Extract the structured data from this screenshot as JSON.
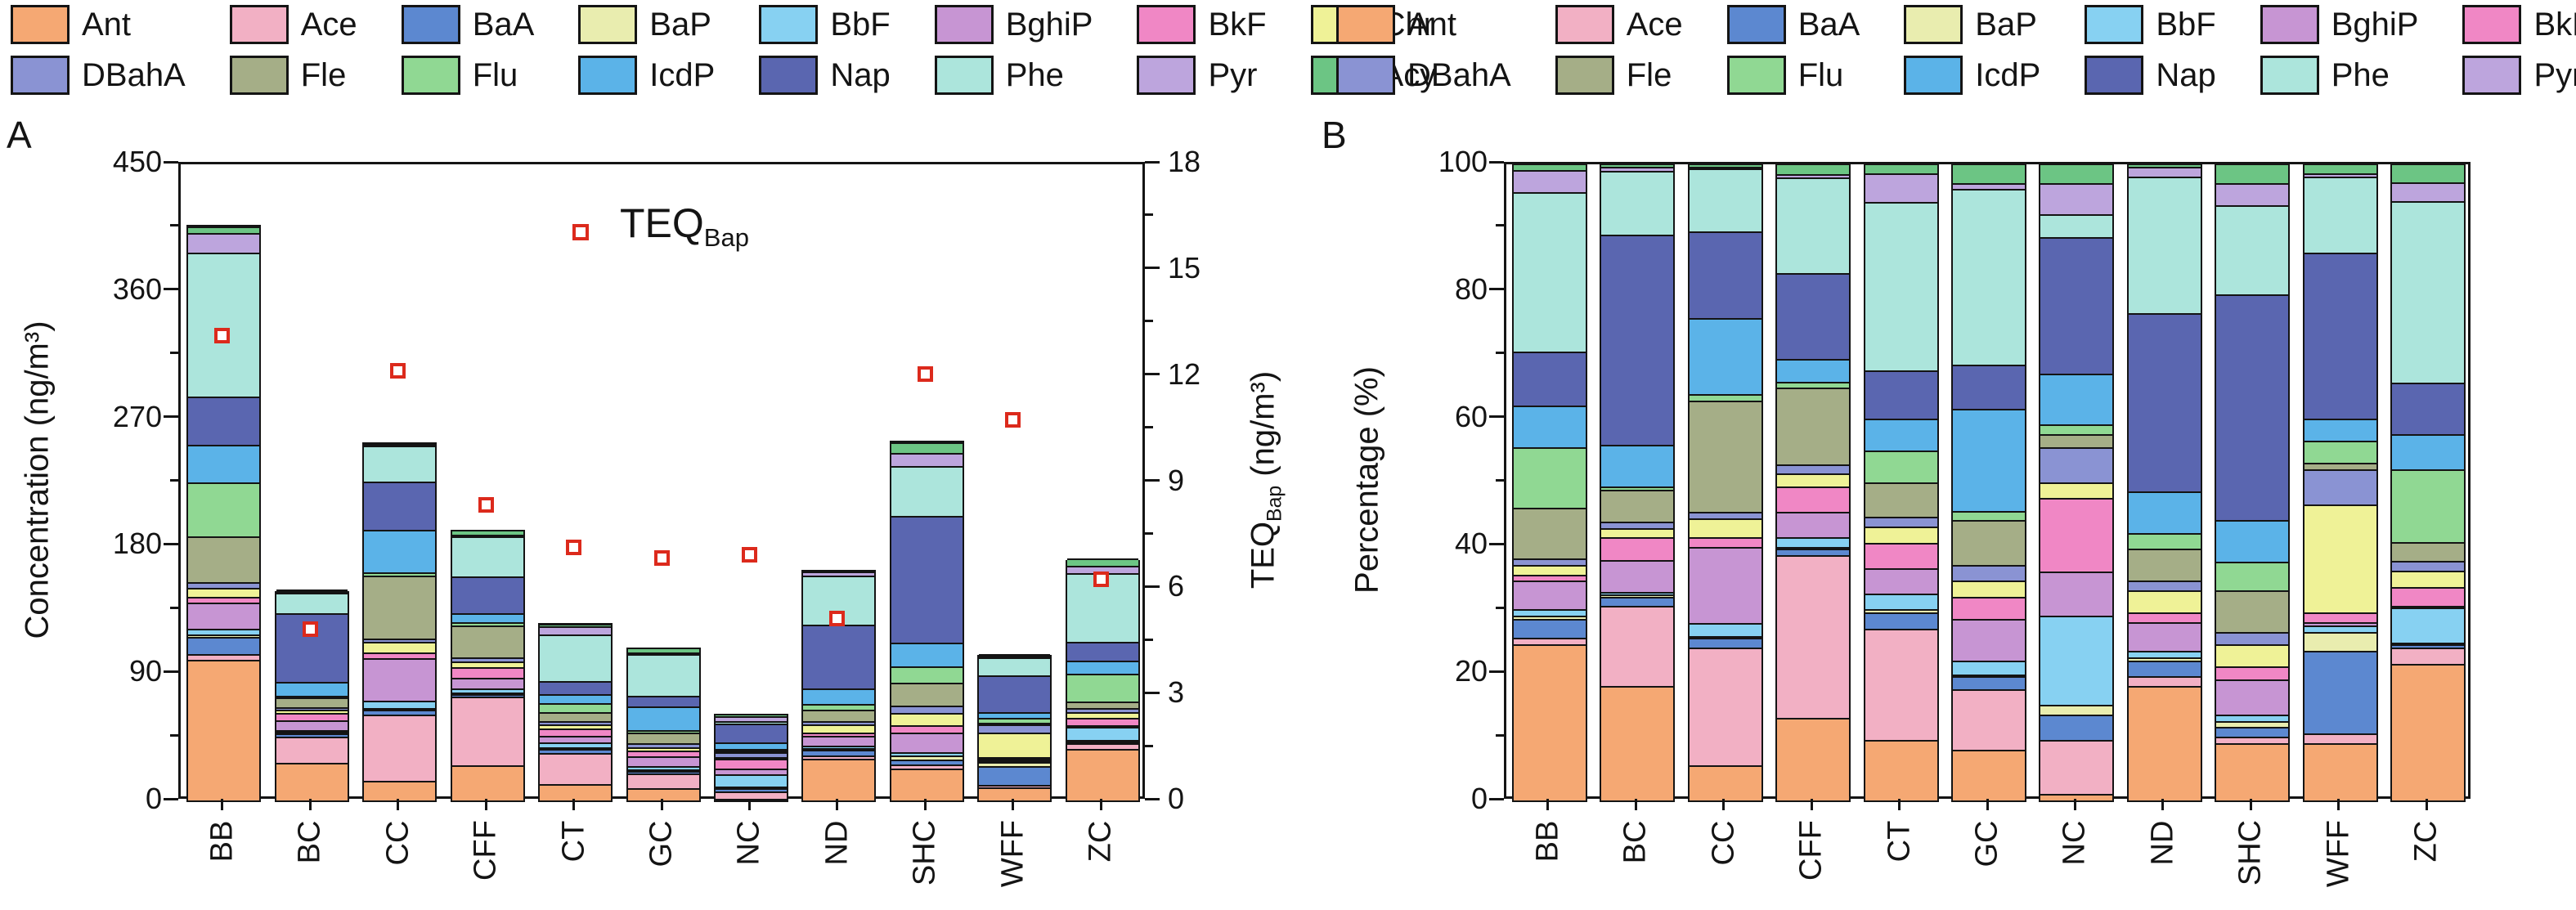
{
  "panels": {
    "a": {
      "label": "A",
      "ylabel": "Concentration (ng/m³)",
      "y2label": {
        "main": "TEQ",
        "sub": "Bap",
        "unit": " (ng/m³)"
      },
      "inplot_legend": {
        "main": "TEQ",
        "sub": "Bap"
      }
    },
    "b": {
      "label": "B",
      "ylabel": "Percentage (%)"
    }
  },
  "legend": {
    "items": [
      {
        "label": "Ant",
        "color": "#F5A873"
      },
      {
        "label": "Ace",
        "color": "#F2B0C4"
      },
      {
        "label": "BaA",
        "color": "#5C88D0"
      },
      {
        "label": "BaP",
        "color": "#E9EDAF"
      },
      {
        "label": "BbF",
        "color": "#87D1F2"
      },
      {
        "label": "BghiP",
        "color": "#C795D3"
      },
      {
        "label": "BkF",
        "color": "#F087C5"
      },
      {
        "label": "Chr",
        "color": "#EFF297"
      },
      {
        "label": "DBahA",
        "color": "#8A93D3"
      },
      {
        "label": "Fle",
        "color": "#A5AE87"
      },
      {
        "label": "Flu",
        "color": "#90D893"
      },
      {
        "label": "IcdP",
        "color": "#5BB3E8"
      },
      {
        "label": "Nap",
        "color": "#5A66B0"
      },
      {
        "label": "Phe",
        "color": "#ACE5DC"
      },
      {
        "label": "Pyr",
        "color": "#BDA5DD"
      },
      {
        "label": "Acy",
        "color": "#6CC584"
      }
    ]
  },
  "chart_data": [
    {
      "panel": "A",
      "type": "bar",
      "stacked": true,
      "title": "",
      "xlabel": "",
      "ylabel": "Concentration (ng/m³)",
      "ylim": [
        0,
        450
      ],
      "yticks": [
        0,
        90,
        180,
        270,
        360,
        450
      ],
      "legend_position": "top",
      "grid": false,
      "categories": [
        "BB",
        "BC",
        "CC",
        "CFF",
        "CT",
        "GC",
        "NC",
        "ND",
        "SHC",
        "WFF",
        "ZC"
      ],
      "totals": [
        405,
        147,
        252,
        190,
        124,
        107,
        60,
        162,
        253,
        102,
        169
      ],
      "series": [
        {
          "name": "Ant",
          "values": [
            99.2,
            26.5,
            13.9,
            24.7,
            11.8,
            8.6,
            0.6,
            29.2,
            22.8,
            9.2,
            36.3
          ]
        },
        {
          "name": "Ace",
          "values": [
            4.1,
            18.4,
            46.6,
            48.5,
            21.7,
            10.2,
            5.1,
            2.4,
            2.5,
            1.5,
            4.2
          ]
        },
        {
          "name": "BaA",
          "values": [
            12.2,
            2.2,
            3.8,
            1.9,
            3.1,
            2.1,
            2.4,
            4.1,
            3.8,
            13.3,
            0.8
          ]
        },
        {
          "name": "BaP",
          "values": [
            2.0,
            0.4,
            0.8,
            0.6,
            0.6,
            0.3,
            0.9,
            0.8,
            2.5,
            3.1,
            0.5
          ]
        },
        {
          "name": "BbF",
          "values": [
            4.1,
            0.7,
            5.0,
            2.9,
            3.1,
            2.4,
            8.4,
            1.6,
            2.5,
            1.0,
            9.3
          ]
        },
        {
          "name": "BghiP",
          "values": [
            18.2,
            7.4,
            30.2,
            7.6,
            5.0,
            7.0,
            4.2,
            7.3,
            13.9,
            0.5,
            0.3
          ]
        },
        {
          "name": "BkF",
          "values": [
            4.1,
            5.1,
            3.8,
            7.6,
            5.0,
            3.7,
            6.9,
            2.4,
            5.1,
            1.5,
            5.1
          ]
        },
        {
          "name": "Chr",
          "values": [
            6.1,
            2.2,
            7.6,
            3.8,
            3.1,
            2.7,
            1.5,
            5.7,
            8.9,
            17.3,
            4.2
          ]
        },
        {
          "name": "DBahA",
          "values": [
            4.1,
            1.5,
            2.5,
            2.9,
            1.9,
            2.7,
            3.3,
            2.4,
            5.1,
            5.6,
            2.5
          ]
        },
        {
          "name": "Fle",
          "values": [
            32.4,
            7.4,
            44.1,
            22.8,
            6.8,
            7.5,
            1.2,
            8.1,
            16.4,
            1.0,
            5.1
          ]
        },
        {
          "name": "Flu",
          "values": [
            38.5,
            0.7,
            2.5,
            1.9,
            6.2,
            1.6,
            0.9,
            4.1,
            11.4,
            3.6,
            19.4
          ]
        },
        {
          "name": "IcdP",
          "values": [
            26.3,
            9.6,
            30.2,
            6.7,
            6.2,
            17.1,
            4.8,
            10.5,
            16.4,
            3.6,
            9.3
          ]
        },
        {
          "name": "Nap",
          "values": [
            34.4,
            48.5,
            34.0,
            25.7,
            9.3,
            7.5,
            12.9,
            45.4,
            89.8,
            26.5,
            13.5
          ]
        },
        {
          "name": "Phe",
          "values": [
            101.3,
            14.7,
            25.2,
            28.5,
            32.9,
            29.4,
            2.1,
            34.8,
            35.4,
            12.2,
            48.2
          ]
        },
        {
          "name": "Pyr",
          "values": [
            14.2,
            1.0,
            0.5,
            1.0,
            5.6,
            1.1,
            3.0,
            2.4,
            8.9,
            0.5,
            5.1
          ]
        },
        {
          "name": "Acy",
          "values": [
            4.1,
            0.7,
            1.3,
            3.2,
            1.9,
            3.2,
            1.8,
            0.8,
            7.6,
            1.5,
            5.1
          ]
        }
      ],
      "y2": {
        "label_main": "TEQ",
        "label_sub": "Bap",
        "label_unit": " (ng/m³)",
        "ylim": [
          0,
          18
        ],
        "yticks": [
          0,
          3,
          6,
          9,
          12,
          15,
          18
        ],
        "series": {
          "name": "TEQBap",
          "marker": "open-red-square",
          "color": "#DC2A1C",
          "values": [
            13.1,
            4.8,
            12.1,
            8.3,
            7.1,
            6.8,
            6.9,
            5.1,
            12.0,
            10.7,
            6.2
          ]
        }
      }
    },
    {
      "panel": "B",
      "type": "bar",
      "stacked": true,
      "title": "",
      "xlabel": "",
      "ylabel": "Percentage (%)",
      "ylim": [
        0,
        100
      ],
      "yticks": [
        0,
        20,
        40,
        60,
        80,
        100
      ],
      "legend_position": "top",
      "grid": false,
      "categories": [
        "BB",
        "BC",
        "CC",
        "CFF",
        "CT",
        "GC",
        "NC",
        "ND",
        "SHC",
        "WFF",
        "ZC"
      ],
      "series": [
        {
          "name": "Ant",
          "values": [
            24.5,
            18.0,
            5.5,
            13.0,
            9.5,
            8.0,
            1.0,
            18.0,
            9.0,
            9.0,
            21.5
          ]
        },
        {
          "name": "Ace",
          "values": [
            1.0,
            12.5,
            18.5,
            25.5,
            17.5,
            9.5,
            8.5,
            1.5,
            1.0,
            1.5,
            2.5
          ]
        },
        {
          "name": "BaA",
          "values": [
            3.0,
            1.5,
            1.5,
            1.0,
            2.5,
            2.0,
            4.0,
            2.5,
            1.5,
            13.0,
            0.5
          ]
        },
        {
          "name": "BaP",
          "values": [
            0.5,
            0.3,
            0.3,
            0.3,
            0.5,
            0.3,
            1.5,
            0.5,
            1.0,
            3.0,
            0.3
          ]
        },
        {
          "name": "BbF",
          "values": [
            1.0,
            0.5,
            2.0,
            1.5,
            2.5,
            2.2,
            14.0,
            1.0,
            1.0,
            1.0,
            5.5
          ]
        },
        {
          "name": "BghiP",
          "values": [
            4.5,
            5.0,
            12.0,
            4.0,
            4.0,
            6.5,
            7.0,
            4.5,
            5.5,
            0.5,
            0.2
          ]
        },
        {
          "name": "BkF",
          "values": [
            1.0,
            3.5,
            1.5,
            4.0,
            4.0,
            3.5,
            11.5,
            1.5,
            2.0,
            1.5,
            3.0
          ]
        },
        {
          "name": "Chr",
          "values": [
            1.5,
            1.5,
            3.0,
            2.0,
            2.5,
            2.5,
            2.5,
            3.5,
            3.5,
            17.0,
            2.5
          ]
        },
        {
          "name": "DBahA",
          "values": [
            1.0,
            1.0,
            1.0,
            1.5,
            1.5,
            2.5,
            5.5,
            1.5,
            2.0,
            5.5,
            1.5
          ]
        },
        {
          "name": "Fle",
          "values": [
            8.0,
            5.0,
            17.5,
            12.0,
            5.5,
            7.0,
            2.0,
            5.0,
            6.5,
            1.0,
            3.0
          ]
        },
        {
          "name": "Flu",
          "values": [
            9.5,
            0.5,
            1.0,
            1.0,
            5.0,
            1.5,
            1.5,
            2.5,
            4.5,
            3.5,
            11.5
          ]
        },
        {
          "name": "IcdP",
          "values": [
            6.5,
            6.5,
            12.0,
            3.5,
            5.0,
            16.0,
            8.0,
            6.5,
            6.5,
            3.5,
            5.5
          ]
        },
        {
          "name": "Nap",
          "values": [
            8.5,
            33.0,
            13.5,
            13.5,
            7.5,
            7.0,
            21.5,
            28.0,
            35.5,
            26.0,
            8.0
          ]
        },
        {
          "name": "Phe",
          "values": [
            25.0,
            10.0,
            10.0,
            15.0,
            26.5,
            27.5,
            3.5,
            21.5,
            14.0,
            12.0,
            28.5
          ]
        },
        {
          "name": "Pyr",
          "values": [
            3.5,
            0.7,
            0.2,
            0.5,
            4.5,
            1.0,
            5.0,
            1.5,
            3.5,
            0.5,
            3.0
          ]
        },
        {
          "name": "Acy",
          "values": [
            1.0,
            0.5,
            0.5,
            1.7,
            1.5,
            3.0,
            3.0,
            0.5,
            3.0,
            1.5,
            3.0
          ]
        }
      ]
    }
  ]
}
